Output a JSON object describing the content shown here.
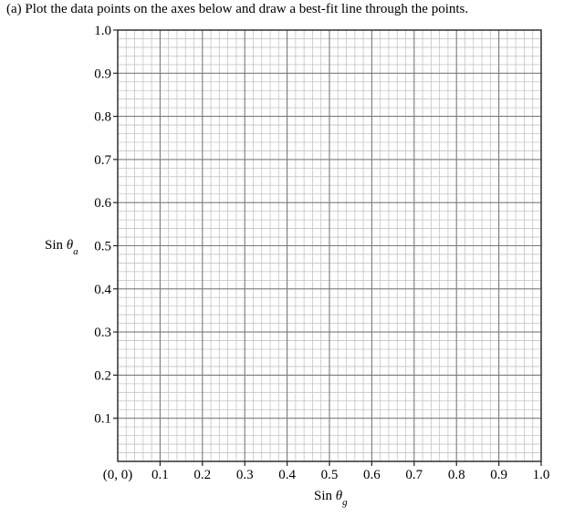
{
  "instruction": "(a) Plot the data points on the axes below and draw a best-fit line through the points.",
  "chart_data": {
    "type": "scatter",
    "title": "",
    "xlabel": {
      "prefix": "Sin ",
      "symbol": "θ",
      "subscript": "g"
    },
    "ylabel": {
      "prefix": "Sin ",
      "symbol": "θ",
      "subscript": "a"
    },
    "xlim": [
      0,
      1.0
    ],
    "ylim": [
      0,
      1.0
    ],
    "x_ticks": [
      0.1,
      0.2,
      0.3,
      0.4,
      0.5,
      0.6,
      0.7,
      0.8,
      0.9,
      1.0
    ],
    "x_tick_labels": [
      "0.1",
      "0.2",
      "0.3",
      "0.4",
      "0.5",
      "0.6",
      "0.7",
      "0.8",
      "0.9",
      "1.0"
    ],
    "y_ticks": [
      0.1,
      0.2,
      0.3,
      0.4,
      0.5,
      0.6,
      0.7,
      0.8,
      0.9,
      1.0
    ],
    "y_tick_labels": [
      "0.1",
      "0.2",
      "0.3",
      "0.4",
      "0.5",
      "0.6",
      "0.7",
      "0.8",
      "0.9",
      "1.0"
    ],
    "origin_label": "(0, 0)",
    "grid": true,
    "major_divisions": 10,
    "minor_per_major": 5,
    "series": []
  }
}
